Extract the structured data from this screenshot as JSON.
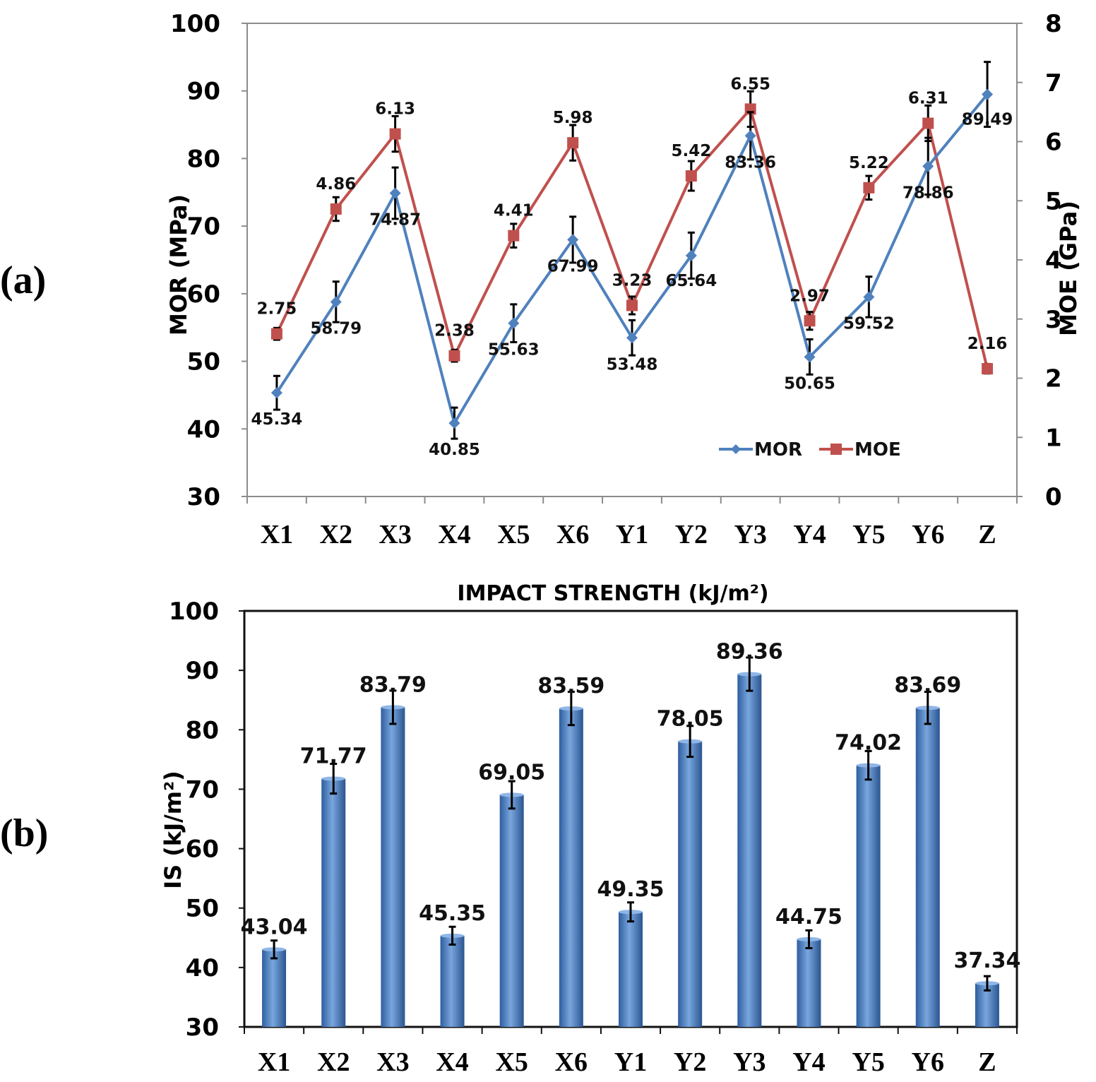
{
  "panel_labels": {
    "a": "(a)",
    "b": "(b)"
  },
  "chart_data": [
    {
      "type": "line",
      "categories": [
        "X1",
        "X2",
        "X3",
        "X4",
        "X5",
        "X6",
        "Y1",
        "Y2",
        "Y3",
        "Y4",
        "Y5",
        "Y6",
        "Z"
      ],
      "series": [
        {
          "name": "MOR",
          "axis": "left",
          "color": "#4f81bd",
          "marker": "diamond",
          "values": [
            45.34,
            58.79,
            74.87,
            40.85,
            55.63,
            67.99,
            53.48,
            65.64,
            83.36,
            50.65,
            59.52,
            78.86,
            89.49
          ],
          "labels": [
            "45.34",
            "58.79",
            "74.87",
            "40.85",
            "55.63",
            "67.99",
            "53.48",
            "65.64",
            "83.36",
            "50.65",
            "59.52",
            "78.86",
            "89.49"
          ],
          "error": [
            2.5,
            3.0,
            3.8,
            2.3,
            2.8,
            3.4,
            2.6,
            3.4,
            3.5,
            2.6,
            3.0,
            4.2,
            4.8
          ]
        },
        {
          "name": "MOE",
          "axis": "right",
          "color": "#c0504d",
          "marker": "square",
          "values": [
            2.75,
            4.86,
            6.13,
            2.38,
            4.41,
            5.98,
            3.23,
            5.42,
            6.55,
            2.97,
            5.22,
            6.31,
            2.16
          ],
          "labels": [
            "2.75",
            "4.86",
            "6.13",
            "2.38",
            "4.41",
            "5.98",
            "3.23",
            "5.42",
            "6.55",
            "2.97",
            "5.22",
            "6.31",
            "2.16"
          ],
          "error": [
            0.1,
            0.2,
            0.3,
            0.1,
            0.2,
            0.3,
            0.15,
            0.25,
            0.3,
            0.15,
            0.2,
            0.3,
            0.08
          ]
        }
      ],
      "ylabel": "MOR (MPa)",
      "ylim": [
        30,
        100
      ],
      "yticks": [
        "30",
        "40",
        "50",
        "60",
        "70",
        "80",
        "90",
        "100"
      ],
      "y2label": "MOE (GPa)",
      "y2lim": [
        0,
        8
      ],
      "y2ticks": [
        "0",
        "1",
        "2",
        "3",
        "4",
        "5",
        "6",
        "7",
        "8"
      ],
      "legend_position": "bottom-right",
      "grid": false
    },
    {
      "type": "bar",
      "title": "IMPACT STRENGTH (kJ/m²)",
      "categories": [
        "X1",
        "X2",
        "X3",
        "X4",
        "X5",
        "X6",
        "Y1",
        "Y2",
        "Y3",
        "Y4",
        "Y5",
        "Y6",
        "Z"
      ],
      "values": [
        43.04,
        71.77,
        83.79,
        45.35,
        69.05,
        83.59,
        49.35,
        78.05,
        89.36,
        44.75,
        74.02,
        83.69,
        37.34
      ],
      "labels": [
        "43.04",
        "71.77",
        "83.79",
        "45.35",
        "69.05",
        "83.59",
        "49.35",
        "78.05",
        "89.36",
        "44.75",
        "74.02",
        "83.69",
        "37.34"
      ],
      "error": [
        1.5,
        2.5,
        2.8,
        1.5,
        2.3,
        2.8,
        1.6,
        2.6,
        2.8,
        1.5,
        2.4,
        2.7,
        1.2
      ],
      "color": "#4f81bd",
      "ylabel": "IS (kJ/m²)",
      "ylim": [
        30,
        100
      ],
      "yticks": [
        "30",
        "40",
        "50",
        "60",
        "70",
        "80",
        "90",
        "100"
      ],
      "grid": false
    }
  ]
}
